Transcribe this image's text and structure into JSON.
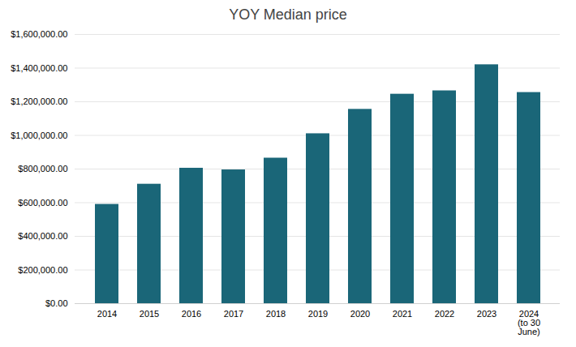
{
  "chart_data": {
    "type": "bar",
    "title": "YOY Median price",
    "categories": [
      "2014",
      "2015",
      "2016",
      "2017",
      "2018",
      "2019",
      "2020",
      "2021",
      "2022",
      "2023",
      "2024\n(to 30\nJune)"
    ],
    "values": [
      590000,
      710000,
      805000,
      795000,
      865000,
      1010000,
      1155000,
      1245000,
      1265000,
      1420000,
      1255000
    ],
    "color": "#1a6678",
    "ylim": [
      0,
      1600000
    ],
    "yticks": [
      {
        "value": 0,
        "label": "$0.00"
      },
      {
        "value": 200000,
        "label": "$200,000.00"
      },
      {
        "value": 400000,
        "label": "$400,000.00"
      },
      {
        "value": 600000,
        "label": "$600,000.00"
      },
      {
        "value": 800000,
        "label": "$800,000.00"
      },
      {
        "value": 1000000,
        "label": "$1,000,000.00"
      },
      {
        "value": 1200000,
        "label": "$1,200,000.00"
      },
      {
        "value": 1400000,
        "label": "$1,400,000.00"
      },
      {
        "value": 1600000,
        "label": "$1,600,000.00"
      }
    ],
    "grid": true
  }
}
